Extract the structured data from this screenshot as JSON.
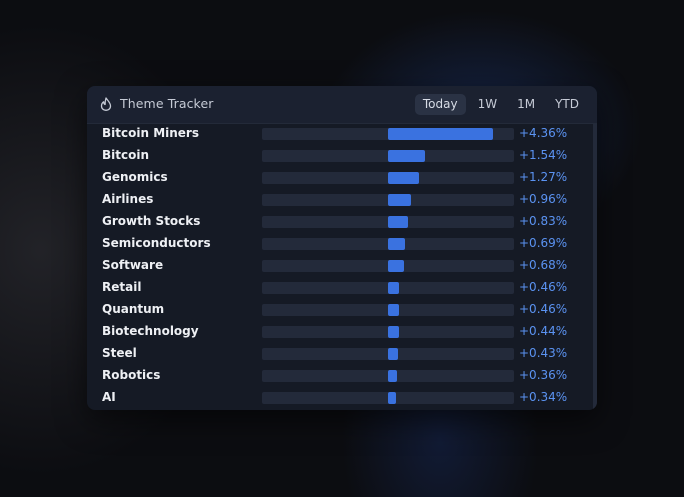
{
  "header": {
    "title": "Theme Tracker",
    "icon": "flame-icon"
  },
  "tabs": [
    {
      "label": "Today",
      "active": true
    },
    {
      "label": "1W",
      "active": false
    },
    {
      "label": "1M",
      "active": false
    },
    {
      "label": "YTD",
      "active": false
    }
  ],
  "colors": {
    "accent": "#3a72e0",
    "value_text": "#5b93f2"
  },
  "themes": [
    {
      "name": "Bitcoin Miners",
      "change": "+4.36%",
      "pct": 4.36
    },
    {
      "name": "Bitcoin",
      "change": "+1.54%",
      "pct": 1.54
    },
    {
      "name": "Genomics",
      "change": "+1.27%",
      "pct": 1.27
    },
    {
      "name": "Airlines",
      "change": "+0.96%",
      "pct": 0.96
    },
    {
      "name": "Growth Stocks",
      "change": "+0.83%",
      "pct": 0.83
    },
    {
      "name": "Semiconductors",
      "change": "+0.69%",
      "pct": 0.69
    },
    {
      "name": "Software",
      "change": "+0.68%",
      "pct": 0.68
    },
    {
      "name": "Retail",
      "change": "+0.46%",
      "pct": 0.46
    },
    {
      "name": "Quantum",
      "change": "+0.46%",
      "pct": 0.46
    },
    {
      "name": "Biotechnology",
      "change": "+0.44%",
      "pct": 0.44
    },
    {
      "name": "Steel",
      "change": "+0.43%",
      "pct": 0.43
    },
    {
      "name": "Robotics",
      "change": "+0.36%",
      "pct": 0.36
    },
    {
      "name": "AI",
      "change": "+0.34%",
      "pct": 0.34
    }
  ]
}
